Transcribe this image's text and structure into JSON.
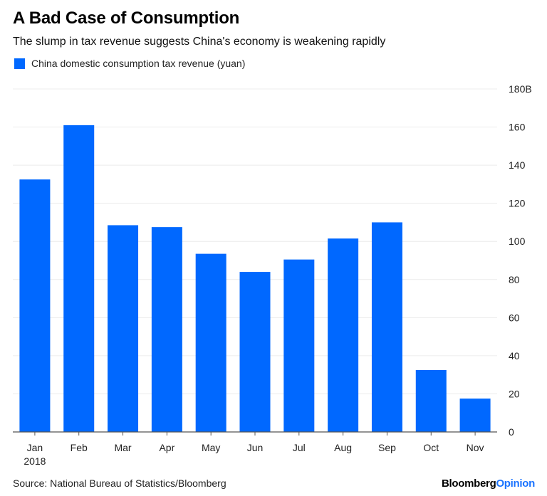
{
  "header": {
    "title": "A Bad Case of Consumption",
    "subtitle": "The slump in tax revenue suggests China's economy is weakening rapidly"
  },
  "footer": {
    "source": "Source: National Bureau of Statistics/Bloomberg",
    "brand_part1": "Bloomberg",
    "brand_part2": "Opinion"
  },
  "colors": {
    "bar": "#0068ff",
    "grid": "#ececec",
    "axis": "#555555",
    "brand_accent": "#1a73ff"
  },
  "chart_data": {
    "type": "bar",
    "title": "A Bad Case of Consumption",
    "subtitle": "The slump in tax revenue suggests China's economy is weakening rapidly",
    "categories": [
      "Jan",
      "Feb",
      "Mar",
      "Apr",
      "May",
      "Jun",
      "Jul",
      "Aug",
      "Sep",
      "Oct",
      "Nov"
    ],
    "category_sublabels": [
      "2018",
      "",
      "",
      "",
      "",
      "",
      "",
      "",
      "",
      "",
      ""
    ],
    "series": [
      {
        "name": "China domestic consumption tax revenue (yuan)",
        "values": [
          132.5,
          161,
          108.5,
          107.5,
          93.5,
          84,
          90.5,
          101.5,
          110,
          32.5,
          17.5
        ]
      }
    ],
    "xlabel": "",
    "ylabel": "",
    "ylim": [
      0,
      180
    ],
    "yticks": [
      0,
      20,
      40,
      60,
      80,
      100,
      120,
      140,
      160,
      180
    ],
    "ytick_labels": [
      "0",
      "20",
      "40",
      "60",
      "80",
      "100",
      "120",
      "140",
      "160",
      "180B"
    ],
    "y_axis_side": "right",
    "grid": true,
    "legend_position": "top-left"
  }
}
